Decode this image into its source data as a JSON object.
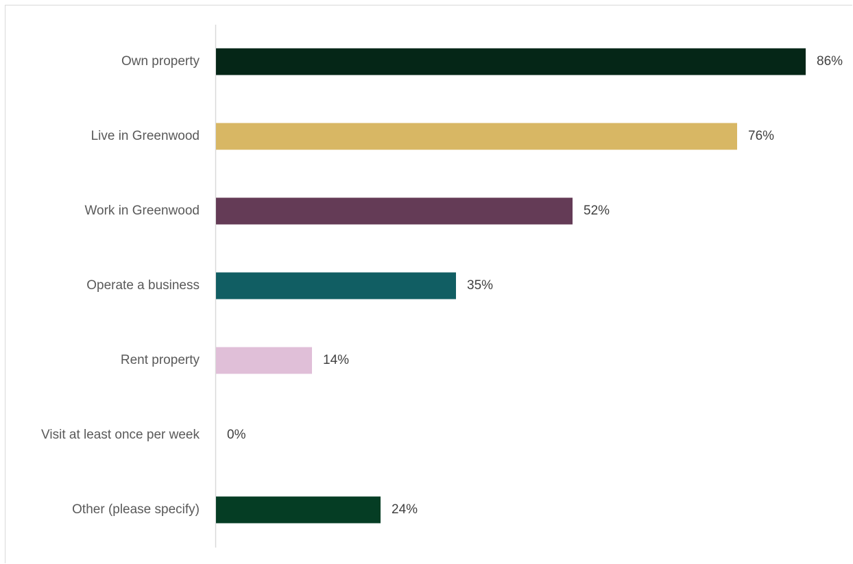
{
  "chart_data": {
    "type": "bar",
    "orientation": "horizontal",
    "categories": [
      "Own property",
      "Live in Greenwood",
      "Work in Greenwood",
      "Operate a business",
      "Rent property",
      "Visit at least once per week",
      "Other (please specify)"
    ],
    "values": [
      86,
      76,
      52,
      35,
      14,
      0,
      24
    ],
    "value_labels": [
      "86%",
      "76%",
      "52%",
      "35%",
      "14%",
      "0%",
      "24%"
    ],
    "colors": [
      "#052617",
      "#d8b764",
      "#643b56",
      "#115e63",
      "#e0bfd8",
      "#cccccc",
      "#053d24"
    ],
    "xlim": [
      0,
      100
    ],
    "unit": "%",
    "title": "",
    "xlabel": "",
    "ylabel": "",
    "grid": false,
    "legend": "none"
  }
}
